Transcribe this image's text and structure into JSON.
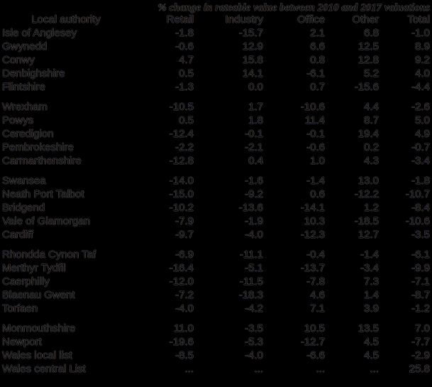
{
  "title": "% change in rateable value between 2010 and 2017 valuations",
  "headers": [
    "Local authority",
    "Retail",
    "Industry",
    "Office",
    "Other",
    "Total"
  ],
  "groups": [
    [
      [
        "Isle of Anglesey",
        "-1.8",
        "-15.7",
        "2.1",
        "6.8",
        "-1.0"
      ],
      [
        "Gwynedd",
        "-0.6",
        "12.9",
        "6.6",
        "12.5",
        "8.9"
      ],
      [
        "Conwy",
        "4.7",
        "15.8",
        "0.8",
        "12.8",
        "9.2"
      ],
      [
        "Denbighshire",
        "0.5",
        "14.1",
        "-6.1",
        "5.2",
        "4.0"
      ],
      [
        "Flintshire",
        "-1.3",
        "0.0",
        "0.7",
        "-15.6",
        "-4.4"
      ]
    ],
    [
      [
        "Wrexham",
        "-10.5",
        "1.7",
        "-10.6",
        "4.4",
        "-2.6"
      ],
      [
        "Powys",
        "0.5",
        "1.8",
        "11.4",
        "8.7",
        "5.0"
      ],
      [
        "Ceredigion",
        "-12.4",
        "-0.1",
        "-0.1",
        "19.4",
        "4.9"
      ],
      [
        "Pembrokeshire",
        "-2.2",
        "-2.1",
        "-0.6",
        "0.2",
        "-0.7"
      ],
      [
        "Carmarthenshire",
        "-12.8",
        "0.4",
        "1.0",
        "4.3",
        "-3.4"
      ]
    ],
    [
      [
        "Swansea",
        "-14.0",
        "-1.6",
        "-1.4",
        "13.0",
        "-1.8"
      ],
      [
        "Neath Port Talbot",
        "-15.0",
        "-9.2",
        "0.6",
        "-12.2",
        "-10.7"
      ],
      [
        "Bridgend",
        "-10.2",
        "-13.6",
        "-14.1",
        "1.2",
        "-8.4"
      ],
      [
        "Vale of Glamorgan",
        "-7.9",
        "-1.9",
        "10.3",
        "-18.5",
        "-10.6"
      ],
      [
        "Cardiff",
        "-9.7",
        "-4.0",
        "-12.3",
        "12.7",
        "-3.5"
      ]
    ],
    [
      [
        "Rhondda Cynon Taf",
        "-6.9",
        "-11.1",
        "-0.4",
        "-1.4",
        "-6.1"
      ],
      [
        "Merthyr Tydfil",
        "-16.4",
        "-5.1",
        "-13.7",
        "-3.4",
        "-9.9"
      ],
      [
        "Caerphilly",
        "-12.0",
        "-11.5",
        "-7.8",
        "7.3",
        "-7.1"
      ],
      [
        "Blaenau Gwent",
        "-7.2",
        "-18.3",
        "4.6",
        "1.4",
        "-8.7"
      ],
      [
        "Torfaen",
        "-4.0",
        "-4.2",
        "7.1",
        "3.9",
        "-1.2"
      ]
    ],
    [
      [
        "Monmouthshire",
        "11.0",
        "-3.5",
        "10.5",
        "13.5",
        "7.0"
      ],
      [
        "Newport",
        "-19.6",
        "-5.3",
        "-12.7",
        "4.5",
        "-7.7"
      ],
      [
        "Wales local list",
        "-8.5",
        "-4.0",
        "-6.6",
        "4.5",
        "-2.9"
      ],
      [
        "Wales central List",
        "...",
        "...",
        "...",
        "...",
        "25.8"
      ]
    ]
  ]
}
